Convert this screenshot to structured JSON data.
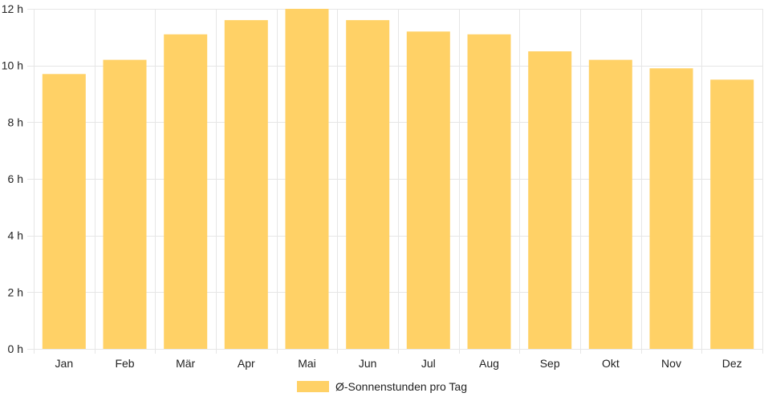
{
  "chart_data": {
    "type": "bar",
    "categories": [
      "Jan",
      "Feb",
      "Mär",
      "Apr",
      "Mai",
      "Jun",
      "Jul",
      "Aug",
      "Sep",
      "Okt",
      "Nov",
      "Dez"
    ],
    "series": [
      {
        "name": "Ø-Sonnenstunden pro Tag",
        "values": [
          9.7,
          10.2,
          11.1,
          11.6,
          12.0,
          11.6,
          11.2,
          11.1,
          10.5,
          10.2,
          9.9,
          9.5
        ],
        "color": "#FFD166"
      }
    ],
    "ylim": [
      0,
      12
    ],
    "yticks": [
      0,
      2,
      4,
      6,
      8,
      10,
      12
    ],
    "ytick_labels": [
      "0 h",
      "2 h",
      "4 h",
      "6 h",
      "8 h",
      "10 h",
      "12 h"
    ],
    "grid": true,
    "legend_position": "bottom-center",
    "title": "",
    "xlabel": "",
    "ylabel": ""
  },
  "colors": {
    "grid": "#e6e6e6",
    "axis": "#cccccc",
    "text": "#222222"
  }
}
